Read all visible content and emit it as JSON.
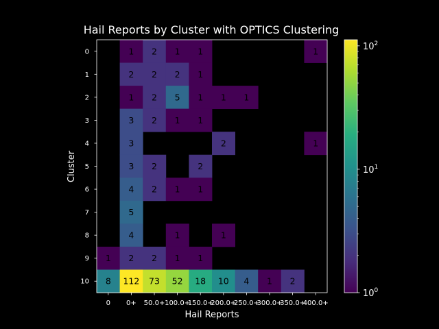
{
  "chart_data": {
    "type": "heatmap",
    "title": "Hail Reports by Cluster with OPTICS Clustering",
    "xlabel": "Hail Reports",
    "ylabel": "Cluster",
    "x_categories": [
      "0",
      "0+",
      "50.0+",
      "100.0+",
      "150.0+",
      "200.0+",
      "250.0+",
      "300.0+",
      "350.0+",
      "400.0+"
    ],
    "y_categories": [
      "0",
      "1",
      "2",
      "3",
      "4",
      "5",
      "6",
      "7",
      "8",
      "9",
      "10"
    ],
    "values": [
      [
        null,
        1,
        2,
        1,
        1,
        null,
        null,
        null,
        null,
        1
      ],
      [
        null,
        2,
        2,
        2,
        1,
        null,
        null,
        null,
        null,
        null
      ],
      [
        null,
        1,
        2,
        5,
        1,
        1,
        1,
        null,
        null,
        null
      ],
      [
        null,
        3,
        2,
        1,
        1,
        null,
        null,
        null,
        null,
        null
      ],
      [
        null,
        3,
        null,
        null,
        null,
        2,
        null,
        null,
        null,
        1
      ],
      [
        null,
        3,
        2,
        null,
        2,
        null,
        null,
        null,
        null,
        null
      ],
      [
        null,
        4,
        2,
        1,
        1,
        null,
        null,
        null,
        null,
        null
      ],
      [
        null,
        5,
        null,
        null,
        null,
        null,
        null,
        null,
        null,
        null
      ],
      [
        null,
        4,
        null,
        1,
        null,
        1,
        null,
        null,
        null,
        null
      ],
      [
        1,
        2,
        2,
        1,
        1,
        null,
        null,
        null,
        null,
        null
      ],
      [
        8,
        112,
        73,
        52,
        18,
        10,
        4,
        1,
        2,
        null
      ]
    ],
    "colorbar": {
      "scale": "log",
      "range": [
        1,
        112
      ],
      "ticks": [
        "10^0",
        "10^1",
        "10^2"
      ],
      "colormap": "viridis"
    },
    "colors": {
      "background": "#000000",
      "empty_cell": "#000000"
    }
  }
}
